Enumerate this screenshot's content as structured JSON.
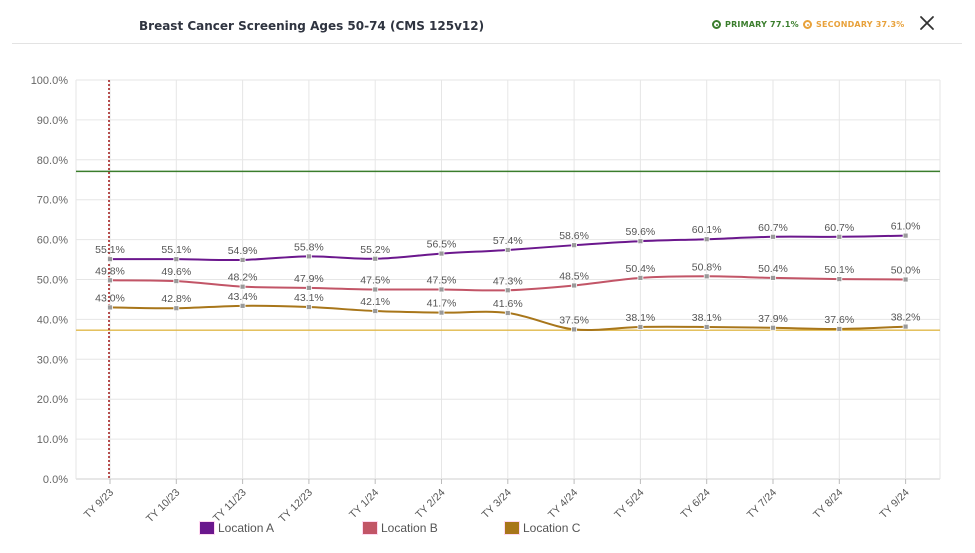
{
  "header": {
    "title": "Breast Cancer Screening Ages 50-74 (CMS 125v12)",
    "primary_label": "PRIMARY 77.1%",
    "secondary_label": "SECONDARY 37.3%",
    "close_icon": "close-icon"
  },
  "colors": {
    "primary_goal": "#3a7d2c",
    "secondary_goal": "#e0b84a",
    "location_a": "#6b178d",
    "location_b": "#c25567",
    "location_c": "#a8761a",
    "current_marker": "#a01515"
  },
  "chart_data": {
    "type": "line",
    "categories": [
      "TY 9/23",
      "TY 10/23",
      "TY 11/23",
      "TY 12/23",
      "TY 1/24",
      "TY 2/24",
      "TY 3/24",
      "TY 4/24",
      "TY 5/24",
      "TY 6/24",
      "TY 7/24",
      "TY 8/24",
      "TY 9/24"
    ],
    "ylim": [
      0,
      100
    ],
    "yticks": [
      "0.0%",
      "10.0%",
      "20.0%",
      "30.0%",
      "40.0%",
      "50.0%",
      "60.0%",
      "70.0%",
      "80.0%",
      "90.0%",
      "100.0%"
    ],
    "grid": true,
    "legend_placement": "bottom",
    "series": [
      {
        "name": "Location A",
        "values": [
          55.1,
          55.1,
          54.9,
          55.8,
          55.2,
          56.5,
          57.4,
          58.6,
          59.6,
          60.1,
          60.7,
          60.7,
          61.0
        ],
        "labels": [
          "55.1%",
          "55.1%",
          "54.9%",
          "55.8%",
          "55.2%",
          "56.5%",
          "57.4%",
          "58.6%",
          "59.6%",
          "60.1%",
          "60.7%",
          "60.7%",
          "61.0%"
        ]
      },
      {
        "name": "Location B",
        "values": [
          49.8,
          49.6,
          48.2,
          47.9,
          47.5,
          47.5,
          47.3,
          48.5,
          50.4,
          50.8,
          50.4,
          50.1,
          50.0
        ],
        "labels": [
          "49.8%",
          "49.6%",
          "48.2%",
          "47.9%",
          "47.5%",
          "47.5%",
          "47.3%",
          "48.5%",
          "50.4%",
          "50.8%",
          "50.4%",
          "50.1%",
          "50.0%"
        ]
      },
      {
        "name": "Location C",
        "values": [
          43.0,
          42.8,
          43.4,
          43.1,
          42.1,
          41.7,
          41.6,
          37.5,
          38.1,
          38.1,
          37.9,
          37.6,
          38.2
        ],
        "labels": [
          "43.0%",
          "42.8%",
          "43.4%",
          "43.1%",
          "42.1%",
          "41.7%",
          "41.6%",
          "37.5%",
          "38.1%",
          "38.1%",
          "37.9%",
          "37.6%",
          "38.2%"
        ]
      }
    ],
    "reference_lines": [
      {
        "value": 77.1
      },
      {
        "value": 37.3
      }
    ],
    "marker_category": "TY 9/23"
  }
}
